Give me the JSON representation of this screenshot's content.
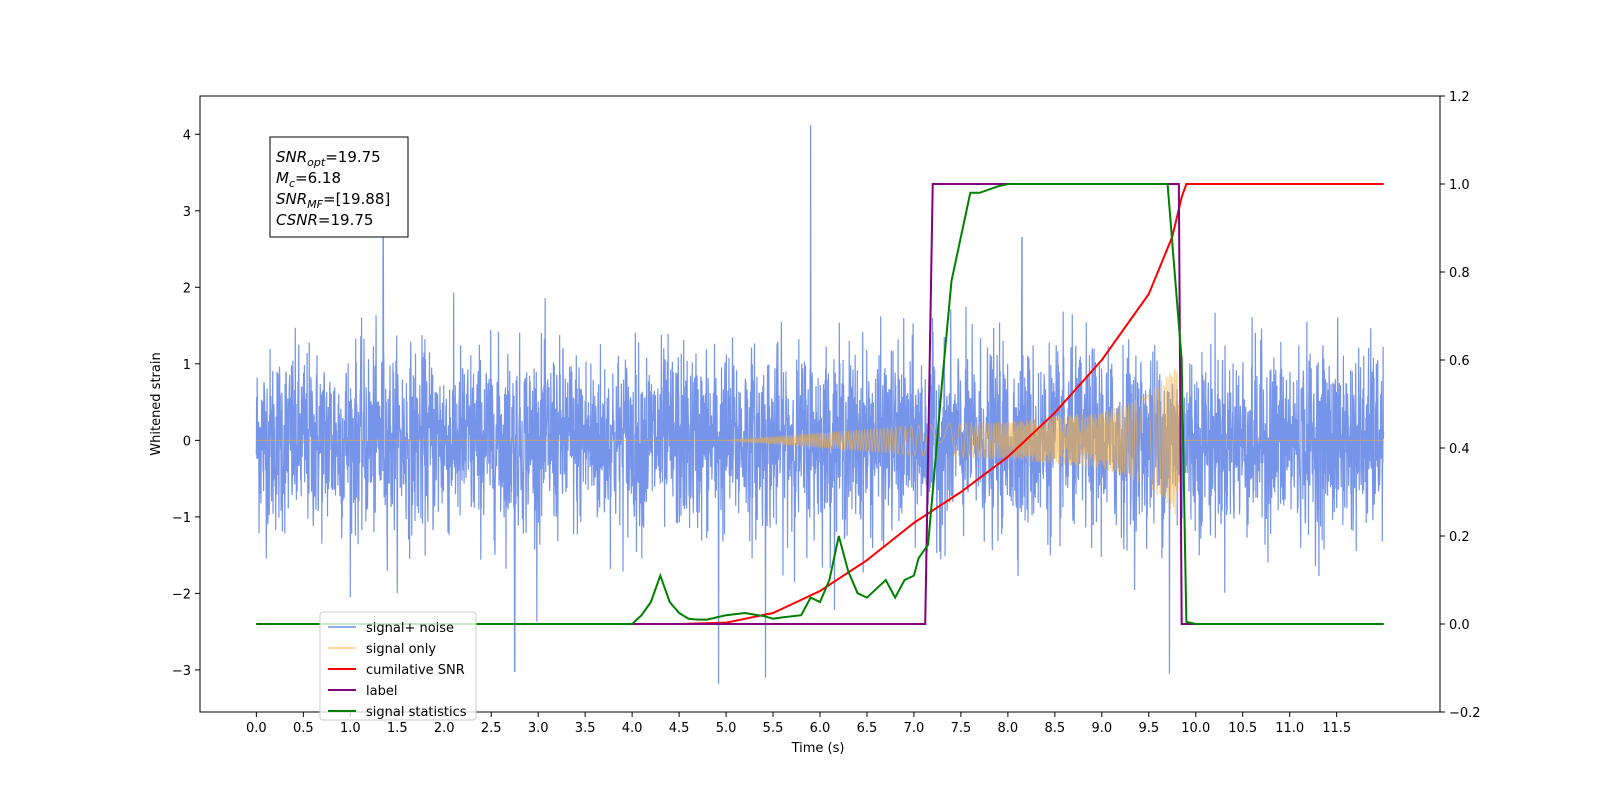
{
  "chart_data": {
    "type": "line",
    "xlabel": "Time (s)",
    "ylabel": "Whitened strain",
    "xlim": [
      -0.6,
      12.6
    ],
    "ylim": [
      -3.55,
      4.5
    ],
    "ylim_right": [
      -0.2,
      1.2
    ],
    "x_ticks": [
      0.0,
      0.5,
      1.0,
      1.5,
      2.0,
      2.5,
      3.0,
      3.5,
      4.0,
      4.5,
      5.0,
      5.5,
      6.0,
      6.5,
      7.0,
      7.5,
      8.0,
      8.5,
      9.0,
      9.5,
      10.0,
      10.5,
      11.0,
      11.5
    ],
    "x_tick_labels": [
      "0.0",
      "0.5",
      "1.0",
      "1.5",
      "2.0",
      "2.5",
      "3.0",
      "3.5",
      "4.0",
      "4.5",
      "5.0",
      "5.5",
      "6.0",
      "6.5",
      "7.0",
      "7.5",
      "8.0",
      "8.5",
      "9.0",
      "9.5",
      "10.0",
      "10.5",
      "11.0",
      "11.5"
    ],
    "y_ticks_left": [
      -3,
      -2,
      -1,
      0,
      1,
      2,
      3,
      4
    ],
    "y_tick_labels_left": [
      "−3",
      "−2",
      "−1",
      "0",
      "1",
      "2",
      "3",
      "4"
    ],
    "y_ticks_right": [
      -0.2,
      0.0,
      0.2,
      0.4,
      0.6,
      0.8,
      1.0,
      1.2
    ],
    "y_tick_labels_right": [
      "−0.2",
      "0.0",
      "0.2",
      "0.4",
      "0.6",
      "0.8",
      "1.0",
      "1.2"
    ],
    "grid": false,
    "legend_position": "lower-left",
    "annotation": {
      "lines": [
        {
          "base": "SNR",
          "sub": "opt",
          "value": "=19.75"
        },
        {
          "base": "M",
          "sub": "c",
          "value": "=6.18"
        },
        {
          "base": "SNR",
          "sub": "MF",
          "value": "=[19.88]"
        },
        {
          "base": "CSNR",
          "sub": "",
          "value": "=19.75"
        }
      ]
    },
    "series": [
      {
        "name": "signal+ noise",
        "axis": "left",
        "color": "#6f8ee8",
        "kind": "noise",
        "x_range": [
          0.0,
          12.0
        ],
        "noise_sigma": 0.95,
        "spikes": [
          {
            "x": 5.9,
            "y": 4.12
          },
          {
            "x": 4.92,
            "y": -3.18
          },
          {
            "x": 5.42,
            "y": -3.1
          },
          {
            "x": 2.75,
            "y": -3.02
          },
          {
            "x": 9.72,
            "y": -3.05
          },
          {
            "x": 1.35,
            "y": 2.75
          },
          {
            "x": 8.15,
            "y": 2.65
          }
        ]
      },
      {
        "name": "signal only",
        "axis": "left",
        "color": "#f5b041",
        "kind": "chirp",
        "x_range": [
          0.0,
          12.0
        ],
        "envelope": {
          "x": [
            0.0,
            5.0,
            6.0,
            7.0,
            8.0,
            9.0,
            9.5,
            9.8,
            9.85
          ],
          "amp": [
            0.0,
            0.0,
            0.1,
            0.2,
            0.25,
            0.37,
            0.6,
            1.0,
            0.0
          ]
        }
      },
      {
        "name": "cumilative SNR",
        "axis": "right",
        "color": "#ff0000",
        "x": [
          0.0,
          4.5,
          5.0,
          5.5,
          6.0,
          6.5,
          7.0,
          7.5,
          8.0,
          8.5,
          9.0,
          9.5,
          9.75,
          9.85,
          9.9,
          12.0
        ],
        "y": [
          0.0,
          0.0,
          0.003,
          0.025,
          0.075,
          0.145,
          0.23,
          0.3,
          0.38,
          0.48,
          0.6,
          0.75,
          0.88,
          0.97,
          1.0,
          1.0
        ]
      },
      {
        "name": "label",
        "axis": "right",
        "color": "#800080",
        "x": [
          0.0,
          7.12,
          7.2,
          9.82,
          9.85,
          12.0
        ],
        "y": [
          0.0,
          0.0,
          1.0,
          1.0,
          0.0,
          0.0
        ]
      },
      {
        "name": "signal statistics",
        "axis": "right",
        "color": "#008000",
        "x": [
          0.0,
          4.0,
          4.1,
          4.2,
          4.3,
          4.4,
          4.5,
          4.6,
          4.7,
          4.8,
          4.9,
          5.0,
          5.2,
          5.4,
          5.5,
          5.6,
          5.8,
          5.9,
          6.0,
          6.1,
          6.2,
          6.3,
          6.4,
          6.5,
          6.6,
          6.7,
          6.8,
          6.9,
          7.0,
          7.05,
          7.15,
          7.2,
          7.3,
          7.4,
          7.5,
          7.6,
          7.7,
          7.9,
          8.0,
          9.7,
          9.85,
          9.9,
          10.0,
          12.0
        ],
        "y": [
          0.0,
          0.0,
          0.02,
          0.05,
          0.11,
          0.05,
          0.025,
          0.012,
          0.01,
          0.01,
          0.015,
          0.02,
          0.025,
          0.018,
          0.012,
          0.015,
          0.02,
          0.06,
          0.05,
          0.1,
          0.2,
          0.12,
          0.07,
          0.06,
          0.08,
          0.1,
          0.06,
          0.1,
          0.11,
          0.15,
          0.18,
          0.3,
          0.55,
          0.78,
          0.88,
          0.98,
          0.98,
          0.995,
          1.0,
          1.0,
          0.6,
          0.005,
          0.0,
          0.0
        ]
      }
    ]
  }
}
